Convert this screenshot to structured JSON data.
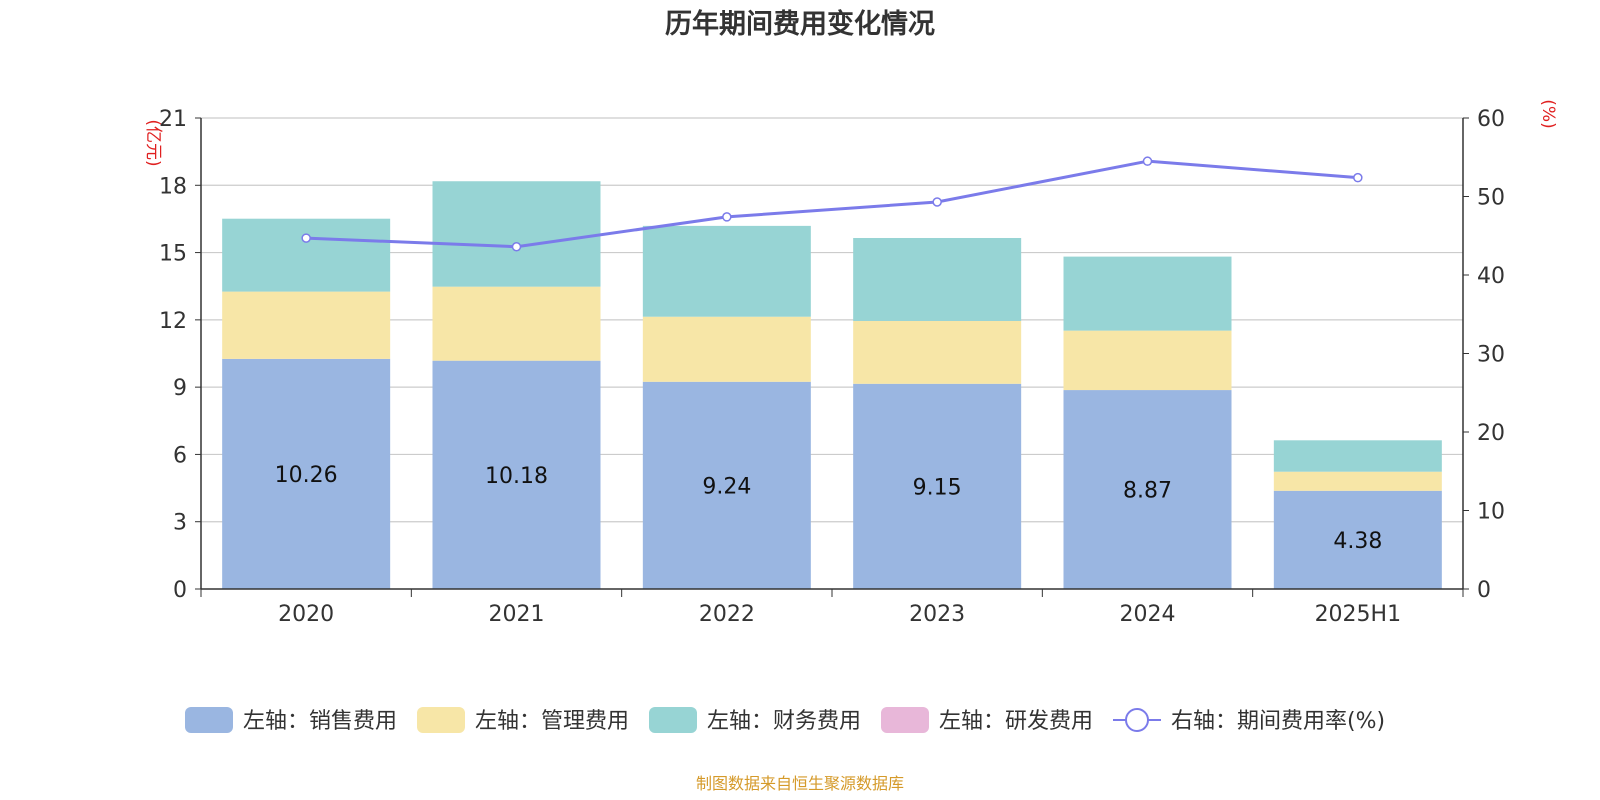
{
  "chart_data": {
    "type": "bar",
    "title": "历年期间费用变化情况",
    "categories": [
      "2020",
      "2021",
      "2022",
      "2023",
      "2024",
      "2025H1"
    ],
    "y_left_unit": "(亿元)",
    "y_right_unit": "(%)",
    "y_left_ticks": [
      "0",
      "3",
      "6",
      "9",
      "12",
      "15",
      "18",
      "21"
    ],
    "y_right_ticks": [
      "0",
      "10",
      "20",
      "30",
      "40",
      "50",
      "60"
    ],
    "ylim_left": [
      0,
      21
    ],
    "ylim_right": [
      0,
      60
    ],
    "series": [
      {
        "name": "左轴：销售费用",
        "type": "bar",
        "axis": "left",
        "color": "#9ab6e1",
        "values": [
          10.26,
          10.18,
          9.24,
          9.15,
          8.87,
          4.38
        ],
        "labels": [
          "10.26",
          "10.18",
          "9.24",
          "9.15",
          "8.87",
          "4.38"
        ]
      },
      {
        "name": "左轴：管理费用",
        "type": "bar",
        "axis": "left",
        "color": "#f7e6a7",
        "values": [
          3.0,
          3.3,
          2.9,
          2.8,
          2.65,
          0.85
        ]
      },
      {
        "name": "左轴：财务费用",
        "type": "bar",
        "axis": "left",
        "color": "#97d4d4",
        "values": [
          3.25,
          4.7,
          4.05,
          3.7,
          3.3,
          1.4
        ]
      },
      {
        "name": "左轴：研发费用",
        "type": "bar",
        "axis": "left",
        "color": "#e8b7d9",
        "values": [
          0,
          0,
          0,
          0,
          0,
          0
        ]
      },
      {
        "name": "右轴：期间费用率(%)",
        "type": "line",
        "axis": "right",
        "color": "#7b7bea",
        "values": [
          44.7,
          43.6,
          47.4,
          49.3,
          54.5,
          52.4
        ]
      }
    ],
    "grid": true,
    "legend_position": "bottom"
  },
  "footer": {
    "source": "制图数据来自恒生聚源数据库"
  }
}
